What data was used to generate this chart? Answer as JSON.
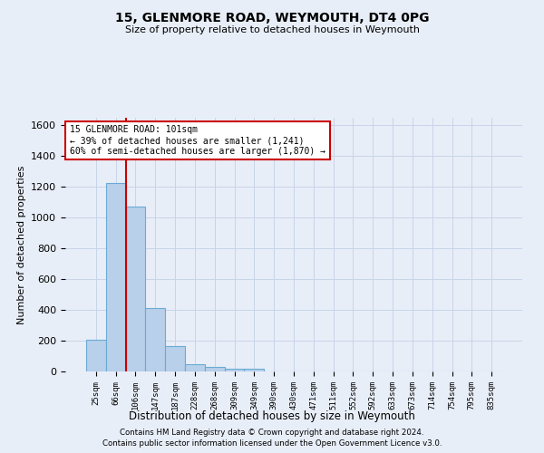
{
  "title": "15, GLENMORE ROAD, WEYMOUTH, DT4 0PG",
  "subtitle": "Size of property relative to detached houses in Weymouth",
  "xlabel": "Distribution of detached houses by size in Weymouth",
  "ylabel": "Number of detached properties",
  "bins": [
    "25sqm",
    "66sqm",
    "106sqm",
    "147sqm",
    "187sqm",
    "228sqm",
    "268sqm",
    "309sqm",
    "349sqm",
    "390sqm",
    "430sqm",
    "471sqm",
    "511sqm",
    "552sqm",
    "592sqm",
    "633sqm",
    "673sqm",
    "714sqm",
    "754sqm",
    "795sqm",
    "835sqm"
  ],
  "values": [
    205,
    1225,
    1075,
    410,
    165,
    45,
    28,
    18,
    15,
    0,
    0,
    0,
    0,
    0,
    0,
    0,
    0,
    0,
    0,
    0,
    0
  ],
  "bar_color": "#b8d0ea",
  "bar_edge_color": "#6aaad4",
  "grid_color": "#c8d4e8",
  "background_color": "#e8eef8",
  "vline_x": 1.5,
  "vline_color": "#cc0000",
  "annotation_line1": "15 GLENMORE ROAD: 101sqm",
  "annotation_line2": "← 39% of detached houses are smaller (1,241)",
  "annotation_line3": "60% of semi-detached houses are larger (1,870) →",
  "annotation_box_color": "#ffffff",
  "annotation_box_edge": "#cc0000",
  "ylim": [
    0,
    1650
  ],
  "yticks": [
    0,
    200,
    400,
    600,
    800,
    1000,
    1200,
    1400,
    1600
  ],
  "footer1": "Contains HM Land Registry data © Crown copyright and database right 2024.",
  "footer2": "Contains public sector information licensed under the Open Government Licence v3.0."
}
